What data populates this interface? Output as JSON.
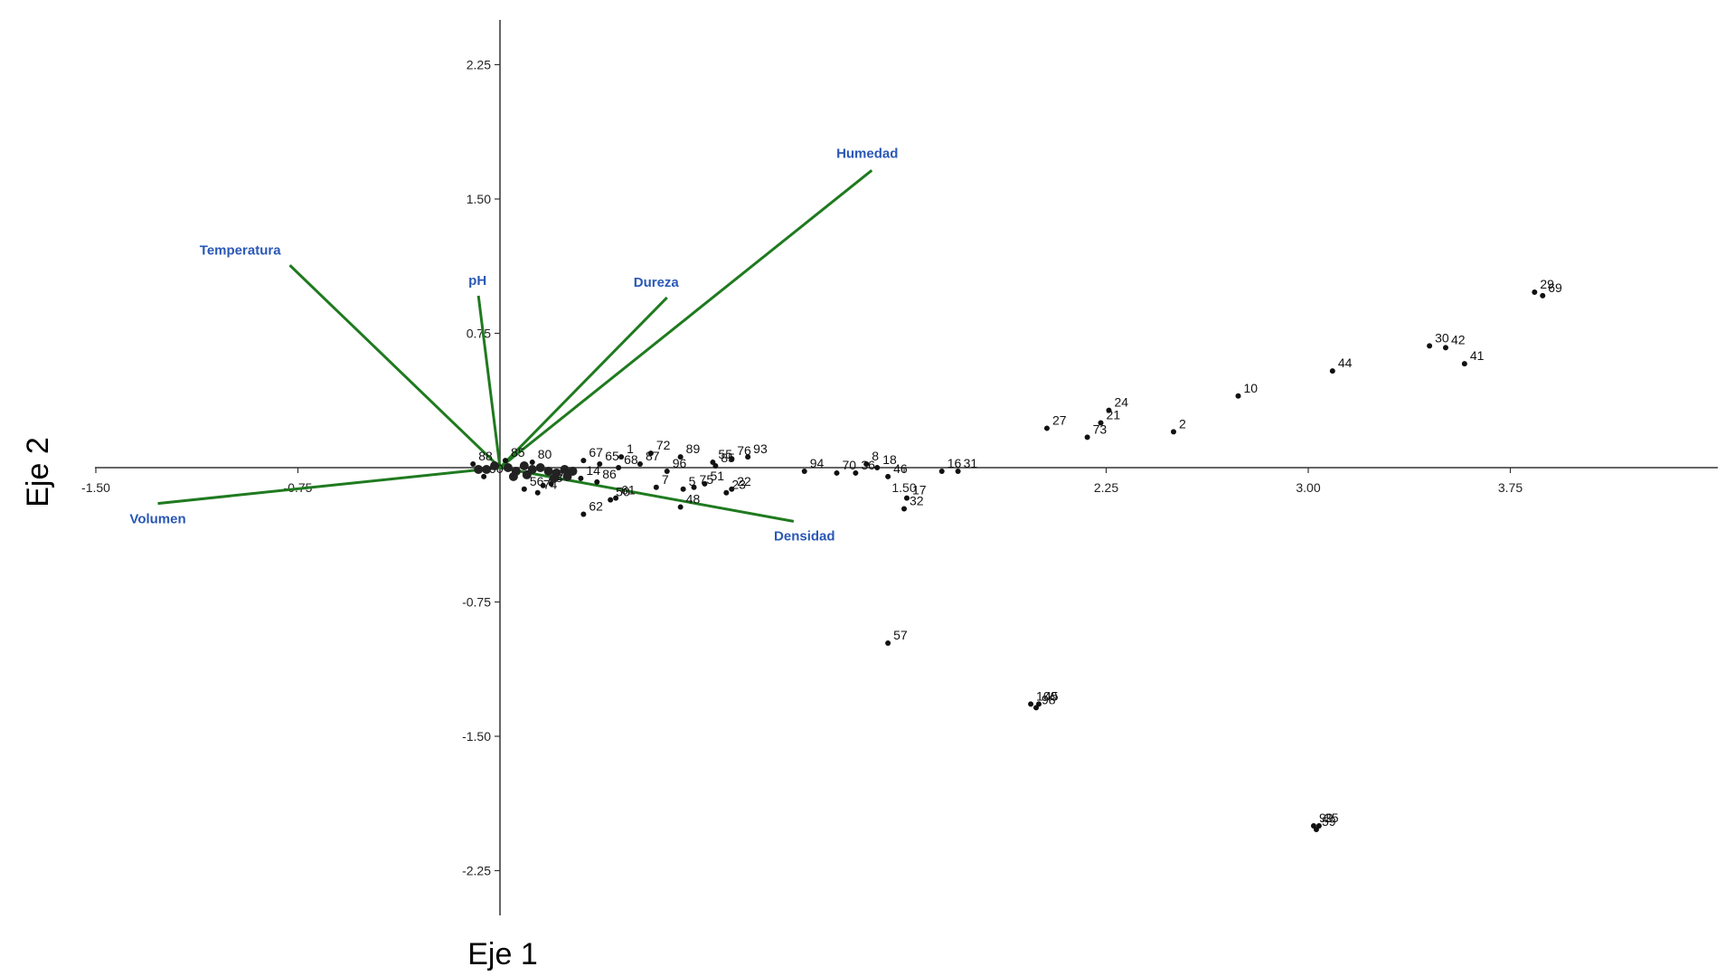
{
  "chart_data": {
    "type": "scatter",
    "subtype": "biplot",
    "xlabel": "Eje 1",
    "ylabel": "Eje 2",
    "xlim": [
      -1.5,
      4.5
    ],
    "ylim": [
      -2.5,
      2.5
    ],
    "xticks": [
      {
        "value": -1.5,
        "label": "-1.50"
      },
      {
        "value": -0.75,
        "label": "-0.75"
      },
      {
        "value": 1.5,
        "label": "1.50"
      },
      {
        "value": 2.25,
        "label": "2.25"
      },
      {
        "value": 3.0,
        "label": "3.00"
      },
      {
        "value": 3.75,
        "label": "3.75"
      }
    ],
    "yticks": [
      {
        "value": 2.25,
        "label": "2.25"
      },
      {
        "value": 1.5,
        "label": "1.50"
      },
      {
        "value": 0.75,
        "label": "0.75"
      },
      {
        "value": -0.75,
        "label": "-0.75"
      },
      {
        "value": -1.5,
        "label": "-1.50"
      },
      {
        "value": -2.25,
        "label": "-2.25"
      }
    ],
    "vectors": [
      {
        "name": "Humedad",
        "x": 1.38,
        "y": 1.66
      },
      {
        "name": "Temperatura",
        "x": -0.78,
        "y": 1.13
      },
      {
        "name": "pH",
        "x": -0.08,
        "y": 0.96
      },
      {
        "name": "Dureza",
        "x": 0.62,
        "y": 0.95
      },
      {
        "name": "Volumen",
        "x": -1.27,
        "y": -0.2
      },
      {
        "name": "Densidad",
        "x": 1.09,
        "y": -0.3
      }
    ],
    "points": [
      {
        "label": "29",
        "x": 3.84,
        "y": 0.98
      },
      {
        "label": "69",
        "x": 3.87,
        "y": 0.96
      },
      {
        "label": "30",
        "x": 3.45,
        "y": 0.68
      },
      {
        "label": "42",
        "x": 3.51,
        "y": 0.67
      },
      {
        "label": "41",
        "x": 3.58,
        "y": 0.58
      },
      {
        "label": "44",
        "x": 3.09,
        "y": 0.54
      },
      {
        "label": "10",
        "x": 2.74,
        "y": 0.4
      },
      {
        "label": "24",
        "x": 2.26,
        "y": 0.32
      },
      {
        "label": "21",
        "x": 2.23,
        "y": 0.25
      },
      {
        "label": "73",
        "x": 2.18,
        "y": 0.17
      },
      {
        "label": "27",
        "x": 2.03,
        "y": 0.22
      },
      {
        "label": "2",
        "x": 2.5,
        "y": 0.2
      },
      {
        "label": "8",
        "x": 1.36,
        "y": 0.02
      },
      {
        "label": "18",
        "x": 1.4,
        "y": 0.0
      },
      {
        "label": "16",
        "x": 1.64,
        "y": -0.02
      },
      {
        "label": "31",
        "x": 1.7,
        "y": -0.02
      },
      {
        "label": "36",
        "x": 1.32,
        "y": -0.03
      },
      {
        "label": "46",
        "x": 1.44,
        "y": -0.05
      },
      {
        "label": "17",
        "x": 1.51,
        "y": -0.17
      },
      {
        "label": "32",
        "x": 1.5,
        "y": -0.23
      },
      {
        "label": "70",
        "x": 1.25,
        "y": -0.03
      },
      {
        "label": "94",
        "x": 1.13,
        "y": -0.02
      },
      {
        "label": "93",
        "x": 0.92,
        "y": 0.06
      },
      {
        "label": "76",
        "x": 0.86,
        "y": 0.05
      },
      {
        "label": "55",
        "x": 0.79,
        "y": 0.03
      },
      {
        "label": "89",
        "x": 0.67,
        "y": 0.06
      },
      {
        "label": "72",
        "x": 0.56,
        "y": 0.08
      },
      {
        "label": "1",
        "x": 0.45,
        "y": 0.06
      },
      {
        "label": "67",
        "x": 0.31,
        "y": 0.04
      },
      {
        "label": "65",
        "x": 0.37,
        "y": 0.02
      },
      {
        "label": "87",
        "x": 0.52,
        "y": 0.02
      },
      {
        "label": "68",
        "x": 0.44,
        "y": 0.0
      },
      {
        "label": "96",
        "x": 0.62,
        "y": -0.02
      },
      {
        "label": "85",
        "x": 0.8,
        "y": 0.01
      },
      {
        "label": "7",
        "x": 0.58,
        "y": -0.11
      },
      {
        "label": "5",
        "x": 0.68,
        "y": -0.12
      },
      {
        "label": "75",
        "x": 0.72,
        "y": -0.11
      },
      {
        "label": "51",
        "x": 0.76,
        "y": -0.09
      },
      {
        "label": "23",
        "x": 0.84,
        "y": -0.14
      },
      {
        "label": "22",
        "x": 0.86,
        "y": -0.12
      },
      {
        "label": "48",
        "x": 0.67,
        "y": -0.22
      },
      {
        "label": "50",
        "x": 0.41,
        "y": -0.18
      },
      {
        "label": "61",
        "x": 0.43,
        "y": -0.17
      },
      {
        "label": "62",
        "x": 0.31,
        "y": -0.26
      },
      {
        "label": "86",
        "x": 0.36,
        "y": -0.08
      },
      {
        "label": "14",
        "x": 0.3,
        "y": -0.06
      },
      {
        "label": "56",
        "x": 0.09,
        "y": -0.12
      },
      {
        "label": "74",
        "x": 0.14,
        "y": -0.14
      },
      {
        "label": "43",
        "x": 0.16,
        "y": -0.1
      },
      {
        "label": "28",
        "x": 0.19,
        "y": -0.09
      },
      {
        "label": "80",
        "x": 0.12,
        "y": 0.03
      },
      {
        "label": "85",
        "x": 0.02,
        "y": 0.04
      },
      {
        "label": "88",
        "x": -0.1,
        "y": 0.02
      },
      {
        "label": "90",
        "x": -0.06,
        "y": -0.05
      },
      {
        "label": "57",
        "x": 1.44,
        "y": -0.98
      },
      {
        "label": "100",
        "x": 1.97,
        "y": -1.32
      },
      {
        "label": "45",
        "x": 2.0,
        "y": -1.32
      },
      {
        "label": "98",
        "x": 1.99,
        "y": -1.34
      },
      {
        "label": "99",
        "x": 3.02,
        "y": -2.0
      },
      {
        "label": "25",
        "x": 3.04,
        "y": -2.0
      },
      {
        "label": "59",
        "x": 3.03,
        "y": -2.02
      }
    ]
  }
}
